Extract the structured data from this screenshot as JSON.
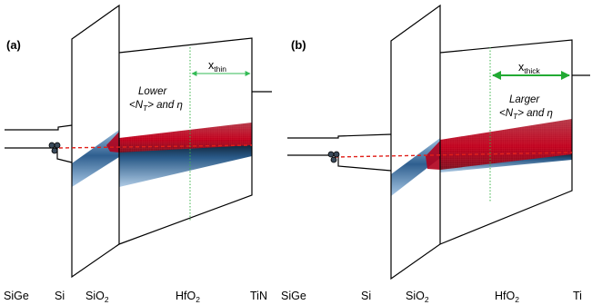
{
  "panels": [
    {
      "label": "(a)",
      "x_label": "x",
      "x_sub": "thin",
      "note_line1": "Lower",
      "note_line2_pre": "<N",
      "note_line2_sub": "T",
      "note_line2_post": "> and η",
      "x_marker_color": "#33bb55",
      "layers": [
        {
          "main": "SiGe",
          "sub": ""
        },
        {
          "main": "Si",
          "sub": ""
        },
        {
          "main": "SiO",
          "sub": "2"
        },
        {
          "main": "HfO",
          "sub": "2"
        },
        {
          "main": "TiN",
          "sub": ""
        }
      ]
    },
    {
      "label": "(b)",
      "x_label": "x",
      "x_sub": "thick",
      "note_line1": "Larger",
      "note_line2_pre": "<N",
      "note_line2_sub": "T",
      "note_line2_post": "> and η",
      "x_marker_color": "#22aa33",
      "layers": [
        {
          "main": "SiGe",
          "sub": ""
        },
        {
          "main": "Si",
          "sub": ""
        },
        {
          "main": "SiO",
          "sub": "2"
        },
        {
          "main": "HfO",
          "sub": "2"
        },
        {
          "main": "Ti",
          "sub": ""
        }
      ]
    }
  ],
  "colors": {
    "band_line": "#000000",
    "fermi_dashed": "#e0201a",
    "trap_red": "#c4001a",
    "tunnel_blue": "#3e6e9c",
    "guide_green": "#3cb44b"
  },
  "icons": [
    "hole-cluster-icon"
  ]
}
